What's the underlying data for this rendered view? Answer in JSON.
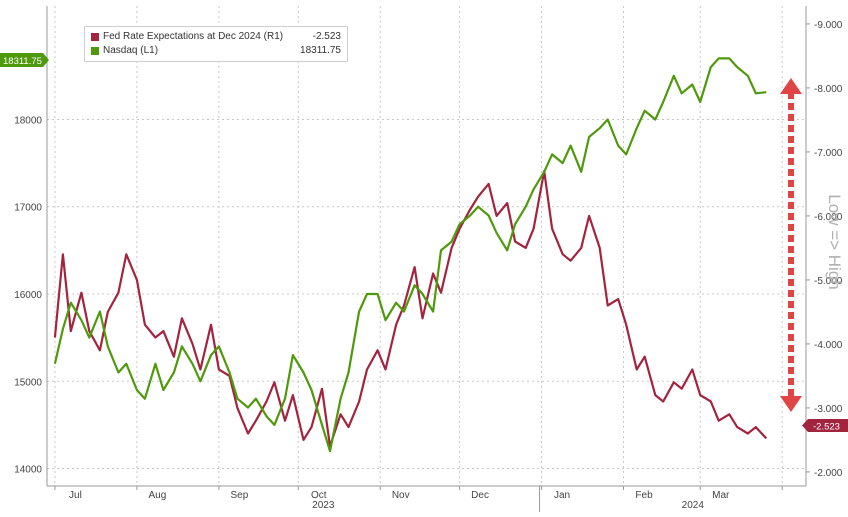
{
  "chart_data": {
    "type": "line",
    "title": "",
    "xlabel": "",
    "annotation": "Low => High",
    "x_ticks": [
      "Jul",
      "Aug",
      "Sep",
      "Oct",
      "Nov",
      "Dec",
      "Jan",
      "Feb",
      "Mar"
    ],
    "year_labels": [
      "2023",
      "2024"
    ],
    "left_axis": {
      "ticks": [
        14000,
        15000,
        16000,
        17000,
        18000
      ],
      "ylim": [
        13800,
        19300
      ]
    },
    "right_axis": {
      "ticks": [
        "-2.000",
        "-3.000",
        "-4.000",
        "-5.000",
        "-6.000",
        "-7.000",
        "-8.000",
        "-9.000"
      ],
      "ylim": [
        -1.78,
        -9.28
      ]
    },
    "grid": true,
    "legend_position": "top-left",
    "series": [
      {
        "name": "Fed Rate Expectations at Dec 2024 (R1)",
        "legend_value": "-2.523",
        "color": "#a3243f",
        "axis": "right",
        "x": [
          "2023-07-01",
          "2023-07-04",
          "2023-07-07",
          "2023-07-11",
          "2023-07-14",
          "2023-07-18",
          "2023-07-21",
          "2023-07-25",
          "2023-07-28",
          "2023-08-01",
          "2023-08-04",
          "2023-08-08",
          "2023-08-11",
          "2023-08-15",
          "2023-08-18",
          "2023-08-22",
          "2023-08-25",
          "2023-08-29",
          "2023-09-01",
          "2023-09-05",
          "2023-09-08",
          "2023-09-12",
          "2023-09-15",
          "2023-09-19",
          "2023-09-22",
          "2023-09-26",
          "2023-09-29",
          "2023-10-03",
          "2023-10-06",
          "2023-10-10",
          "2023-10-13",
          "2023-10-17",
          "2023-10-20",
          "2023-10-24",
          "2023-10-27",
          "2023-10-31",
          "2023-11-03",
          "2023-11-07",
          "2023-11-10",
          "2023-11-14",
          "2023-11-17",
          "2023-11-21",
          "2023-11-24",
          "2023-11-28",
          "2023-12-01",
          "2023-12-05",
          "2023-12-08",
          "2023-12-12",
          "2023-12-15",
          "2023-12-19",
          "2023-12-22",
          "2023-12-26",
          "2023-12-29",
          "2024-01-02",
          "2024-01-05",
          "2024-01-09",
          "2024-01-12",
          "2024-01-16",
          "2024-01-19",
          "2024-01-23",
          "2024-01-26",
          "2024-01-30",
          "2024-02-02",
          "2024-02-06",
          "2024-02-09",
          "2024-02-13",
          "2024-02-16",
          "2024-02-20",
          "2024-02-23",
          "2024-02-27",
          "2024-03-01",
          "2024-03-05",
          "2024-03-08",
          "2024-03-12",
          "2024-03-15",
          "2024-03-19",
          "2024-03-22",
          "2024-03-26"
        ],
        "values": [
          -4.1,
          -5.4,
          -4.2,
          -4.8,
          -4.2,
          -3.9,
          -4.5,
          -4.8,
          -5.4,
          -5.0,
          -4.3,
          -4.1,
          -4.2,
          -3.8,
          -4.4,
          -4.0,
          -3.6,
          -4.3,
          -3.6,
          -3.5,
          -3.0,
          -2.6,
          -2.8,
          -3.1,
          -3.4,
          -2.8,
          -3.2,
          -2.5,
          -2.7,
          -3.3,
          -2.4,
          -2.9,
          -2.7,
          -3.1,
          -3.6,
          -3.9,
          -3.6,
          -4.3,
          -4.6,
          -5.2,
          -4.4,
          -5.1,
          -4.8,
          -5.5,
          -5.8,
          -6.1,
          -6.3,
          -6.5,
          -6.0,
          -6.2,
          -5.6,
          -5.5,
          -5.8,
          -6.7,
          -5.8,
          -5.4,
          -5.3,
          -5.5,
          -6.0,
          -5.5,
          -4.6,
          -4.7,
          -4.3,
          -3.6,
          -3.8,
          -3.2,
          -3.1,
          -3.4,
          -3.3,
          -3.6,
          -3.2,
          -3.1,
          -2.8,
          -2.9,
          -2.7,
          -2.6,
          -2.7,
          -2.523
        ]
      },
      {
        "name": "Nasdaq (L1)",
        "legend_value": "18311.75",
        "color": "#4f9a0c",
        "axis": "left",
        "x": [
          "2023-07-01",
          "2023-07-04",
          "2023-07-07",
          "2023-07-11",
          "2023-07-14",
          "2023-07-18",
          "2023-07-21",
          "2023-07-25",
          "2023-07-28",
          "2023-08-01",
          "2023-08-04",
          "2023-08-08",
          "2023-08-11",
          "2023-08-15",
          "2023-08-18",
          "2023-08-22",
          "2023-08-25",
          "2023-08-29",
          "2023-09-01",
          "2023-09-05",
          "2023-09-08",
          "2023-09-12",
          "2023-09-15",
          "2023-09-19",
          "2023-09-22",
          "2023-09-26",
          "2023-09-29",
          "2023-10-03",
          "2023-10-06",
          "2023-10-10",
          "2023-10-13",
          "2023-10-17",
          "2023-10-20",
          "2023-10-24",
          "2023-10-27",
          "2023-10-31",
          "2023-11-03",
          "2023-11-07",
          "2023-11-10",
          "2023-11-14",
          "2023-11-17",
          "2023-11-21",
          "2023-11-24",
          "2023-11-28",
          "2023-12-01",
          "2023-12-05",
          "2023-12-08",
          "2023-12-12",
          "2023-12-15",
          "2023-12-19",
          "2023-12-22",
          "2023-12-26",
          "2023-12-29",
          "2024-01-02",
          "2024-01-05",
          "2024-01-09",
          "2024-01-12",
          "2024-01-16",
          "2024-01-19",
          "2024-01-23",
          "2024-01-26",
          "2024-01-30",
          "2024-02-02",
          "2024-02-06",
          "2024-02-09",
          "2024-02-13",
          "2024-02-16",
          "2024-02-20",
          "2024-02-23",
          "2024-02-27",
          "2024-03-01",
          "2024-03-05",
          "2024-03-08",
          "2024-03-12",
          "2024-03-15",
          "2024-03-19",
          "2024-03-22",
          "2024-03-26"
        ],
        "values": [
          15200,
          15600,
          15900,
          15700,
          15500,
          15800,
          15400,
          15100,
          15200,
          14900,
          14800,
          15200,
          14900,
          15100,
          15400,
          15200,
          15000,
          15300,
          15400,
          15100,
          14800,
          14700,
          14800,
          14600,
          14500,
          14800,
          15300,
          15100,
          14900,
          14500,
          14200,
          14800,
          15100,
          15800,
          16000,
          16000,
          15700,
          15900,
          15800,
          16100,
          16000,
          15800,
          16500,
          16600,
          16800,
          16900,
          17000,
          16900,
          16700,
          16500,
          16800,
          17000,
          17200,
          17400,
          17600,
          17500,
          17700,
          17400,
          17800,
          17900,
          18000,
          17700,
          17600,
          17900,
          18100,
          18000,
          18200,
          18500,
          18300,
          18400,
          18200,
          18600,
          18700,
          18700,
          18600,
          18500,
          18300,
          18311.75
        ]
      }
    ]
  },
  "badges": {
    "nasdaq_last": "18311.75",
    "fed_last": "-2.523"
  },
  "colors": {
    "fed": "#a3243f",
    "nasdaq": "#4f9a0c",
    "arrow": "#e04545",
    "grid": "#c8c8c8"
  }
}
